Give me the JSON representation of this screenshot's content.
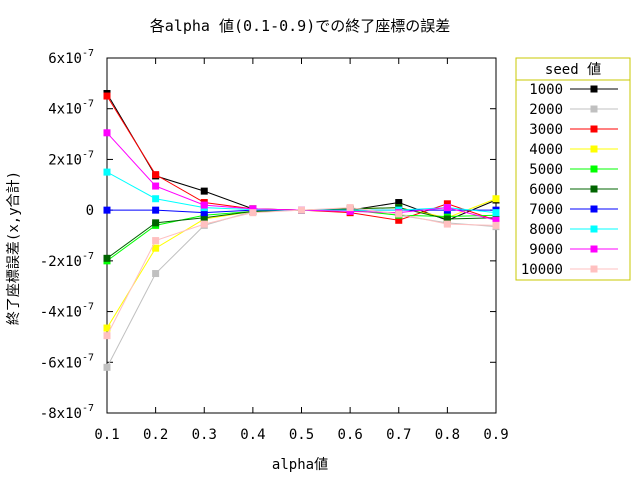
{
  "chart_data": {
    "type": "line",
    "title": "各alpha 値(0.1-0.9)での終了座標の誤差",
    "xlabel": "alpha値",
    "ylabel": "終了座標誤差(x,y合計)",
    "xlim": [
      0.1,
      0.9
    ],
    "ylim": [
      -8e-07,
      6e-07
    ],
    "grid": false,
    "legend_placement": "right",
    "legend_title": "seed 値",
    "x_ticks": [
      {
        "value": 0.1,
        "label": "0.1"
      },
      {
        "value": 0.2,
        "label": "0.2"
      },
      {
        "value": 0.3,
        "label": "0.3"
      },
      {
        "value": 0.4,
        "label": "0.4"
      },
      {
        "value": 0.5,
        "label": "0.5"
      },
      {
        "value": 0.6,
        "label": "0.6"
      },
      {
        "value": 0.7,
        "label": "0.7"
      },
      {
        "value": 0.8,
        "label": "0.8"
      },
      {
        "value": 0.9,
        "label": "0.9"
      }
    ],
    "y_ticks": [
      {
        "value": 6e-07,
        "base": "6x10",
        "exp": "-7"
      },
      {
        "value": 4e-07,
        "base": "4x10",
        "exp": "-7"
      },
      {
        "value": 2e-07,
        "base": "2x10",
        "exp": "-7"
      },
      {
        "value": 0,
        "base": "0",
        "exp": ""
      },
      {
        "value": -2e-07,
        "base": "-2x10",
        "exp": "-7"
      },
      {
        "value": -4e-07,
        "base": "-4x10",
        "exp": "-7"
      },
      {
        "value": -6e-07,
        "base": "-6x10",
        "exp": "-7"
      },
      {
        "value": -8e-07,
        "base": "-8x10",
        "exp": "-7"
      }
    ],
    "x": [
      0.1,
      0.2,
      0.3,
      0.4,
      0.5,
      0.6,
      0.7,
      0.8,
      0.9
    ],
    "series": [
      {
        "name": "1000",
        "color": "#000000",
        "values": [
          4.6e-07,
          1.35e-07,
          7.5e-08,
          5e-09,
          0,
          0,
          3e-08,
          -4e-08,
          4e-08
        ]
      },
      {
        "name": "2000",
        "color": "#c0c0c0",
        "values": [
          -6.2e-07,
          -2.5e-07,
          -6e-08,
          -5e-09,
          0,
          5e-09,
          -2e-08,
          -5e-08,
          -6.5e-08
        ]
      },
      {
        "name": "3000",
        "color": "#ff0000",
        "values": [
          4.5e-07,
          1.4e-07,
          3e-08,
          5e-09,
          0,
          -1e-08,
          -4e-08,
          2.5e-08,
          -4e-08
        ]
      },
      {
        "name": "4000",
        "color": "#ffff00",
        "values": [
          -4.65e-07,
          -1.5e-07,
          -3.5e-08,
          -5e-09,
          0,
          5e-09,
          1e-08,
          -3e-08,
          4.5e-08
        ]
      },
      {
        "name": "5000",
        "color": "#00ff00",
        "values": [
          -2e-07,
          -6e-08,
          -2e-08,
          -5e-09,
          0,
          0,
          -2e-08,
          -2.5e-08,
          -2e-08
        ]
      },
      {
        "name": "6000",
        "color": "#006400",
        "values": [
          -1.9e-07,
          -5e-08,
          -3e-08,
          -5e-09,
          0,
          5e-09,
          1e-08,
          -3.5e-08,
          -3e-08
        ]
      },
      {
        "name": "7000",
        "color": "#0000ff",
        "values": [
          0,
          0,
          -1e-08,
          0,
          0,
          0,
          0,
          0,
          0
        ]
      },
      {
        "name": "8000",
        "color": "#00ffff",
        "values": [
          1.5e-07,
          4.5e-08,
          1e-08,
          2e-09,
          0,
          0,
          0,
          1e-08,
          -1e-08
        ]
      },
      {
        "name": "9000",
        "color": "#ff00ff",
        "values": [
          3.05e-07,
          9.5e-08,
          2e-08,
          5e-09,
          0,
          -5e-09,
          -1e-08,
          1e-08,
          -4e-08
        ]
      },
      {
        "name": "10000",
        "color": "#ffc0c0",
        "values": [
          -4.95e-07,
          -1.2e-07,
          -5.5e-08,
          -1e-08,
          0,
          1e-08,
          -1.5e-08,
          -5.5e-08,
          -6e-08
        ]
      }
    ]
  }
}
